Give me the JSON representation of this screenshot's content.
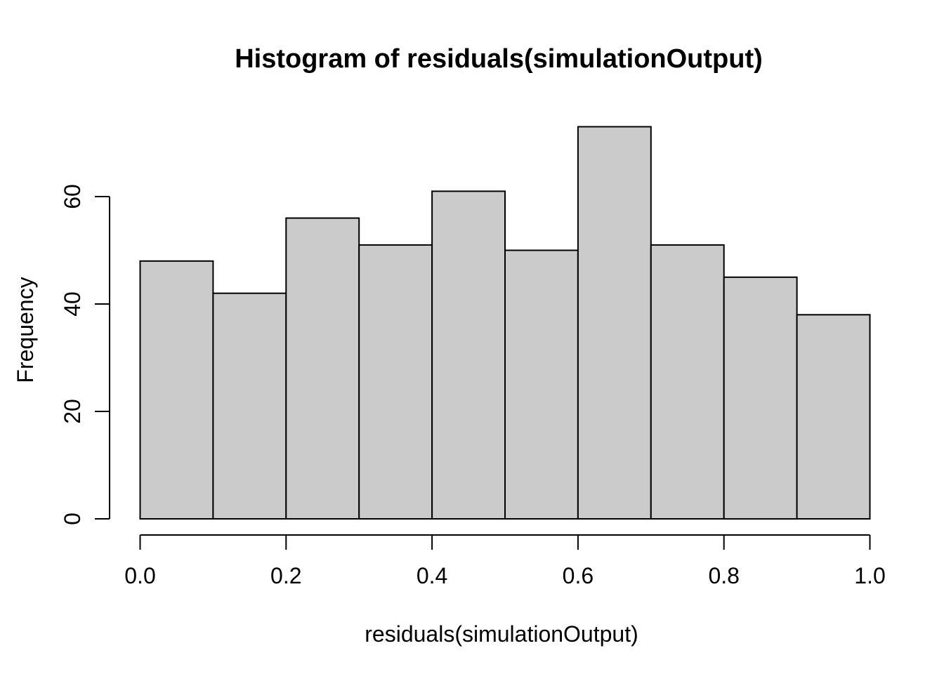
{
  "chart_data": {
    "type": "bar",
    "subtype": "histogram",
    "title": "Histogram of residuals(simulationOutput)",
    "xlabel": "residuals(simulationOutput)",
    "ylabel": "Frequency",
    "bin_edges": [
      0.0,
      0.1,
      0.2,
      0.3,
      0.4,
      0.5,
      0.6,
      0.7,
      0.8,
      0.9,
      1.0
    ],
    "categories": [
      "0.0-0.1",
      "0.1-0.2",
      "0.2-0.3",
      "0.3-0.4",
      "0.4-0.5",
      "0.5-0.6",
      "0.6-0.7",
      "0.7-0.8",
      "0.8-0.9",
      "0.9-1.0"
    ],
    "values": [
      48,
      42,
      56,
      51,
      61,
      50,
      73,
      51,
      45,
      38
    ],
    "xlim": [
      0.0,
      1.0
    ],
    "ylim": [
      0,
      73
    ],
    "x_ticks": [
      0.0,
      0.2,
      0.4,
      0.6,
      0.8,
      1.0
    ],
    "x_tick_labels": [
      "0.0",
      "0.2",
      "0.4",
      "0.6",
      "0.8",
      "1.0"
    ],
    "y_ticks": [
      0,
      20,
      40,
      60
    ],
    "y_tick_labels": [
      "0",
      "20",
      "40",
      "60"
    ],
    "grid": false,
    "legend": false,
    "colors": {
      "bar_fill": "#CBCBCB",
      "bar_stroke": "#000000",
      "axis": "#000000",
      "background": "#FFFFFF",
      "text": "#000000"
    }
  }
}
